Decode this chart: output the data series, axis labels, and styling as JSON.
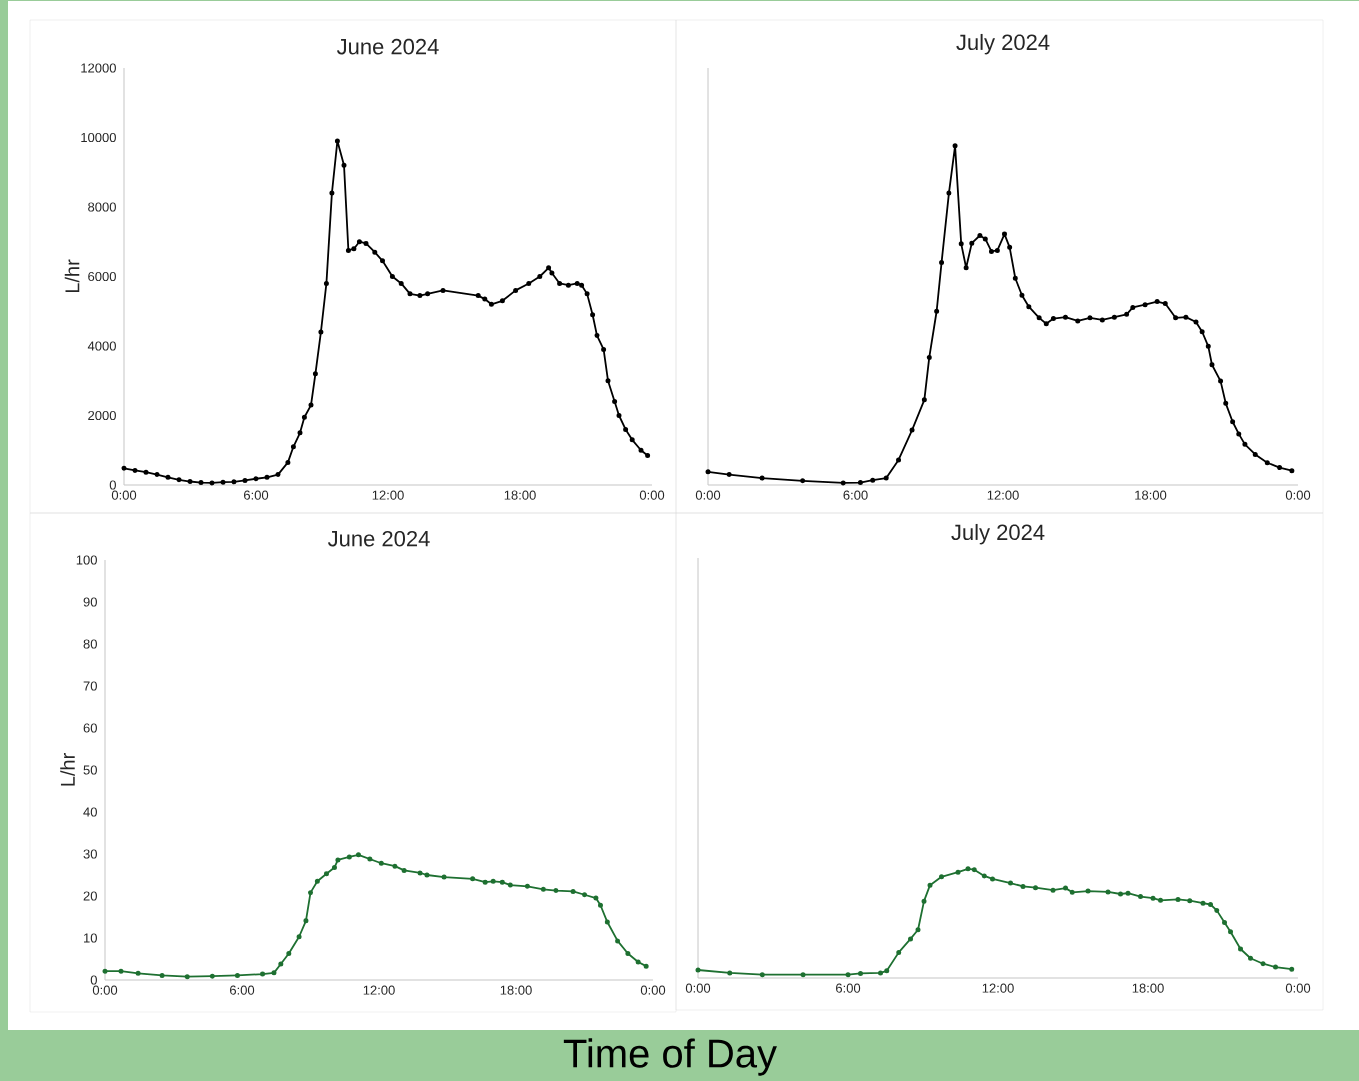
{
  "chart_data": [
    {
      "type": "line",
      "title": "June 2024",
      "ylabel": "L/hr",
      "color": "#000000",
      "marker": "circle",
      "line_style": "solid",
      "xlim": [
        0,
        24
      ],
      "ylim": [
        0,
        12000
      ],
      "xticks": [
        {
          "value": 0,
          "label": "0:00"
        },
        {
          "value": 6,
          "label": "6:00"
        },
        {
          "value": 12,
          "label": "12:00"
        },
        {
          "value": 18,
          "label": "18:00"
        },
        {
          "value": 24,
          "label": "0:00"
        }
      ],
      "yticks": [
        0,
        2000,
        4000,
        6000,
        8000,
        10000,
        12000
      ],
      "x": [
        0,
        0.5,
        1,
        1.5,
        2,
        2.5,
        3,
        3.5,
        4,
        4.5,
        5,
        5.5,
        6,
        6.5,
        7,
        7.45,
        7.7,
        8,
        8.2,
        8.5,
        8.7,
        8.95,
        9.2,
        9.45,
        9.7,
        10,
        10.2,
        10.45,
        10.7,
        11,
        11.4,
        11.75,
        12.2,
        12.6,
        13,
        13.45,
        13.8,
        14.5,
        16.1,
        16.4,
        16.7,
        17.2,
        17.8,
        18.4,
        18.9,
        19.3,
        19.45,
        19.8,
        20.2,
        20.6,
        20.8,
        21.05,
        21.3,
        21.5,
        21.8,
        22,
        22.3,
        22.5,
        22.8,
        23.1,
        23.5,
        23.8
      ],
      "values": [
        480,
        420,
        370,
        300,
        220,
        150,
        100,
        70,
        60,
        80,
        90,
        130,
        180,
        220,
        300,
        650,
        1100,
        1500,
        1950,
        2300,
        3200,
        4400,
        5800,
        8400,
        9900,
        9200,
        6750,
        6800,
        7000,
        6950,
        6700,
        6450,
        6000,
        5800,
        5500,
        5450,
        5500,
        5600,
        5450,
        5350,
        5200,
        5300,
        5600,
        5800,
        6000,
        6250,
        6100,
        5800,
        5750,
        5800,
        5750,
        5500,
        4900,
        4300,
        3900,
        3000,
        2400,
        2000,
        1600,
        1300,
        1000,
        850
      ]
    },
    {
      "type": "line",
      "title": "July 2024",
      "color": "#000000",
      "marker": "circle",
      "line_style": "solid",
      "tick_labels": "x",
      "xlim": [
        0,
        24
      ],
      "ylim": [
        0,
        12000
      ],
      "xticks": [
        {
          "value": 0,
          "label": "0:00"
        },
        {
          "value": 6,
          "label": "6:00"
        },
        {
          "value": 12,
          "label": "12:00"
        },
        {
          "value": 18,
          "label": "18:00"
        },
        {
          "value": 24,
          "label": "0:00"
        }
      ],
      "yticks": [
        0,
        2000,
        4000,
        6000,
        8000,
        10000,
        12000
      ],
      "x": [
        0,
        0.86,
        2.2,
        3.85,
        5.5,
        6.2,
        6.7,
        7.25,
        7.75,
        8.3,
        8.8,
        9,
        9.3,
        9.5,
        9.8,
        10.05,
        10.3,
        10.5,
        10.73,
        11.06,
        11.28,
        11.53,
        11.77,
        12.06,
        12.27,
        12.5,
        12.77,
        13.05,
        13.47,
        13.76,
        14.05,
        14.54,
        15.04,
        15.54,
        16.04,
        16.53,
        17.03,
        17.28,
        17.78,
        18.27,
        18.6,
        19.02,
        19.44,
        19.85,
        20.1,
        20.35,
        20.5,
        20.85,
        21.06,
        21.34,
        21.59,
        21.84,
        22.26,
        22.75,
        23.25,
        23.75
      ],
      "values": [
        380,
        300,
        200,
        120,
        60,
        70,
        140,
        200,
        720,
        1580,
        2450,
        3670,
        5000,
        6400,
        8400,
        9760,
        6940,
        6250,
        6960,
        7180,
        7080,
        6720,
        6750,
        7220,
        6840,
        5950,
        5460,
        5130,
        4810,
        4640,
        4790,
        4830,
        4720,
        4810,
        4750,
        4830,
        4910,
        5110,
        5190,
        5280,
        5220,
        4810,
        4830,
        4690,
        4410,
        3990,
        3460,
        2990,
        2350,
        1820,
        1470,
        1170,
        880,
        640,
        500,
        410
      ]
    },
    {
      "type": "line",
      "title": "June 2024",
      "ylabel": "L/hr",
      "xlabel": "Time of Day",
      "color": "#1e7031",
      "marker": "circle",
      "line_style": "solid",
      "xlim": [
        0,
        24
      ],
      "ylim": [
        0,
        100
      ],
      "xticks": [
        {
          "value": 0,
          "label": "0:00"
        },
        {
          "value": 6,
          "label": "6:00"
        },
        {
          "value": 12,
          "label": "12:00"
        },
        {
          "value": 18,
          "label": "18:00"
        },
        {
          "value": 24,
          "label": "0:00"
        }
      ],
      "yticks": [
        0,
        10,
        20,
        30,
        40,
        50,
        60,
        70,
        80,
        90,
        100
      ],
      "x": [
        0,
        0.7,
        1.45,
        2.5,
        3.6,
        4.7,
        5.8,
        6.9,
        7.4,
        7.7,
        8.05,
        8.5,
        8.8,
        9,
        9.3,
        9.7,
        10.05,
        10.2,
        10.7,
        11.1,
        11.6,
        12.1,
        12.7,
        13.1,
        13.8,
        14.1,
        14.85,
        16.1,
        16.65,
        17,
        17.4,
        17.75,
        18.5,
        19.2,
        19.75,
        20.5,
        21,
        21.5,
        21.7,
        22,
        22.45,
        22.9,
        23.35,
        23.7
      ],
      "values": [
        2.1,
        2.1,
        1.6,
        1.1,
        0.8,
        0.9,
        1.1,
        1.4,
        1.7,
        3.8,
        6.3,
        10.3,
        14.1,
        20.8,
        23.5,
        25.3,
        26.8,
        28.6,
        29.3,
        29.8,
        28.8,
        27.8,
        27.1,
        26.1,
        25.5,
        25,
        24.5,
        24.1,
        23.3,
        23.5,
        23.3,
        22.6,
        22.3,
        21.6,
        21.3,
        21.1,
        20.3,
        19.5,
        17.8,
        13.8,
        9.3,
        6.3,
        4.3,
        3.3
      ]
    },
    {
      "type": "line",
      "title": "July 2024",
      "color": "#1e7031",
      "marker": "circle",
      "line_style": "solid",
      "tick_labels": "x",
      "xlim": [
        0,
        24
      ],
      "ylim": [
        0,
        100
      ],
      "xticks": [
        {
          "value": 0,
          "label": "0:00"
        },
        {
          "value": 6,
          "label": "6:00"
        },
        {
          "value": 12,
          "label": "12:00"
        },
        {
          "value": 18,
          "label": "18:00"
        },
        {
          "value": 24,
          "label": "0:00"
        }
      ],
      "yticks": [
        0,
        10,
        20,
        30,
        40,
        50,
        60,
        70,
        80,
        90,
        100
      ],
      "x": [
        0,
        1.27,
        2.57,
        4.2,
        6,
        6.5,
        7.3,
        7.55,
        8.03,
        8.5,
        8.8,
        9.04,
        9.28,
        9.74,
        10.4,
        10.8,
        11.05,
        11.45,
        11.78,
        12.5,
        13,
        13.5,
        14.2,
        14.7,
        14.97,
        15.6,
        16.4,
        16.9,
        17.2,
        17.7,
        18.2,
        18.5,
        19.2,
        19.67,
        20.2,
        20.5,
        20.75,
        21.06,
        21.3,
        21.7,
        22.1,
        22.6,
        23.1,
        23.75
      ],
      "values": [
        1.9,
        1.2,
        0.8,
        0.8,
        0.8,
        1.1,
        1.2,
        1.7,
        6.1,
        9.3,
        11.5,
        18.3,
        22.1,
        24.1,
        25.2,
        26,
        25.8,
        24.3,
        23.6,
        22.6,
        21.8,
        21.5,
        20.9,
        21.4,
        20.4,
        20.7,
        20.5,
        20,
        20.2,
        19.4,
        19,
        18.5,
        18.7,
        18.4,
        17.8,
        17.5,
        16.1,
        13.2,
        11,
        6.9,
        4.7,
        3.4,
        2.6,
        2.1
      ]
    }
  ]
}
